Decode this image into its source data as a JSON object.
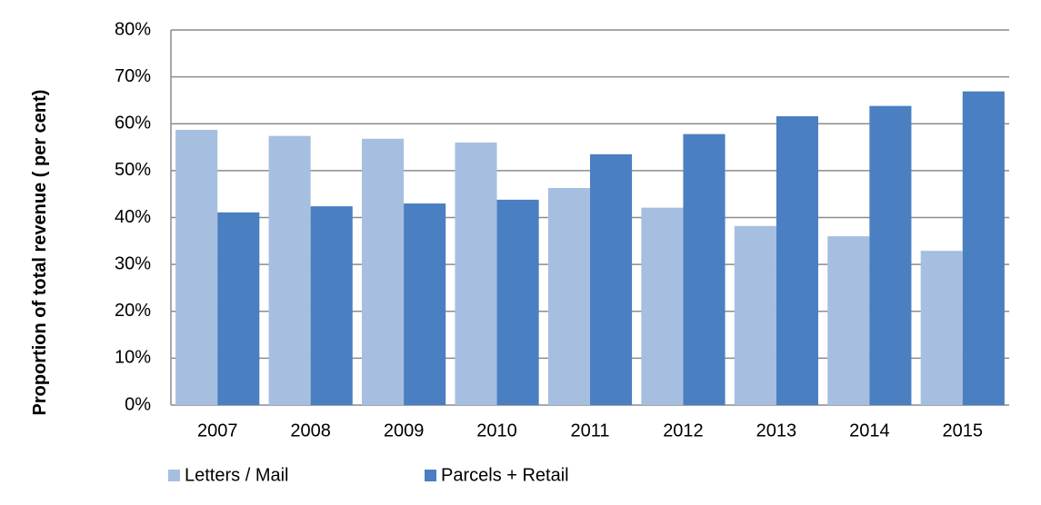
{
  "chart_data": {
    "type": "bar",
    "ylabel": "Proportion of total revenue ( per cent)",
    "categories": [
      "2007",
      "2008",
      "2009",
      "2010",
      "2011",
      "2012",
      "2013",
      "2014",
      "2015"
    ],
    "series": [
      {
        "name": "Letters / Mail",
        "color": "#a6bfe0",
        "values": [
          58.7,
          57.4,
          56.8,
          56.0,
          46.3,
          42.1,
          38.2,
          36.0,
          32.9
        ]
      },
      {
        "name": "Parcels + Retail",
        "color": "#4a7fc1",
        "values": [
          41.1,
          42.4,
          43.0,
          43.8,
          53.5,
          57.8,
          61.6,
          63.8,
          66.9
        ]
      }
    ],
    "ylim": [
      0,
      80
    ],
    "yticks": [
      {
        "value": 0,
        "label": "0%"
      },
      {
        "value": 10,
        "label": "10%"
      },
      {
        "value": 20,
        "label": "20%"
      },
      {
        "value": 30,
        "label": "30%"
      },
      {
        "value": 40,
        "label": "40%"
      },
      {
        "value": 50,
        "label": "50%"
      },
      {
        "value": 60,
        "label": "60%"
      },
      {
        "value": 70,
        "label": "70%"
      },
      {
        "value": 80,
        "label": "80%"
      }
    ],
    "grid": true,
    "legend": "bottom"
  }
}
